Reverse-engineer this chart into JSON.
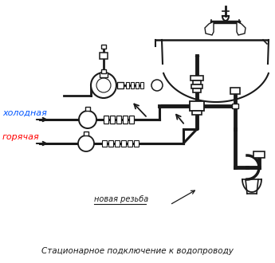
{
  "title": "Стационарное подключение к водопроводу",
  "label_cold": "холодная",
  "label_hot": "горячая",
  "label_thread": "новая резьба",
  "cold_color": "#0055ff",
  "hot_color": "#ff0000",
  "line_color": "#1a1a1a",
  "bg_color": "#ffffff",
  "title_fontsize": 7.5,
  "label_fontsize": 8,
  "thread_fontsize": 7
}
